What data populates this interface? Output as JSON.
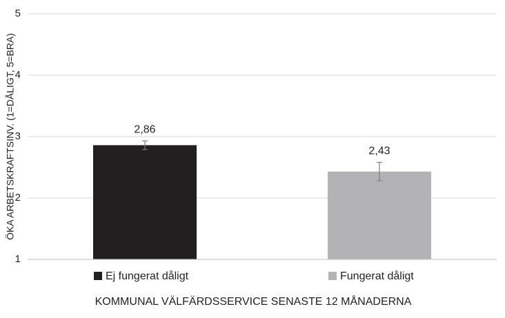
{
  "chart_data": {
    "type": "bar",
    "ylabel": "ÖKA ARBETSKRAFTSINV. (1=DÅLIGT, 5=BRA)",
    "xlabel": "KOMMUNAL VÄLFÄRDSSERVICE SENASTE 12 MÅNADERNA",
    "series": [
      {
        "name": "Ej fungerat dåligt",
        "color": "#231f20",
        "values": [
          2.86
        ],
        "errors": [
          0.07
        ],
        "value_labels": [
          "2,86"
        ]
      },
      {
        "name": "Fungerat dåligt",
        "color": "#b3b3b6",
        "values": [
          2.43
        ],
        "errors": [
          0.15
        ],
        "value_labels": [
          "2,43"
        ]
      }
    ],
    "ylim": [
      1,
      5
    ],
    "yticks": [
      1,
      2,
      3,
      4,
      5
    ],
    "grid": true
  }
}
